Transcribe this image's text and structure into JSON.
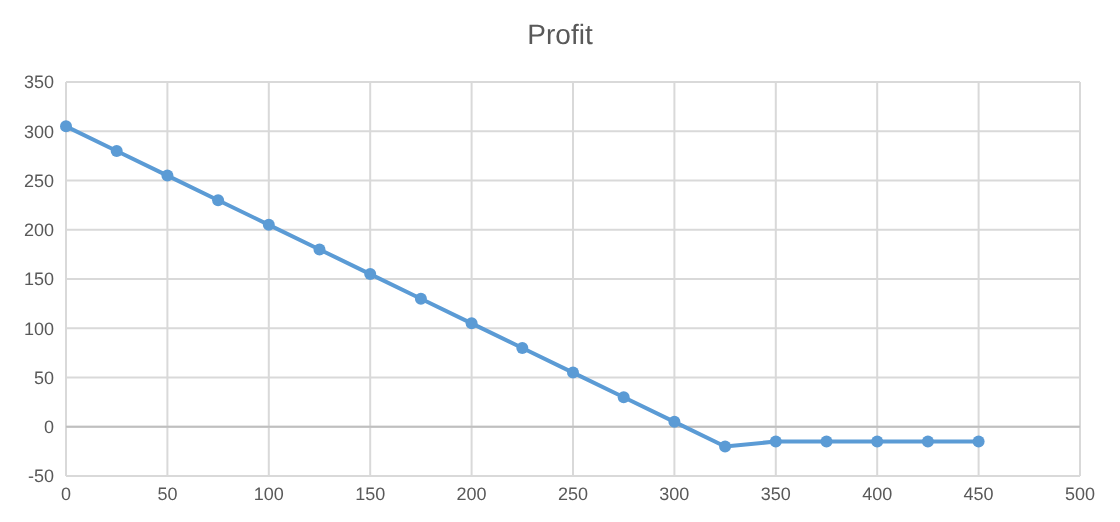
{
  "chart_data": {
    "type": "line",
    "title": "Profit",
    "x": [
      0,
      25,
      50,
      75,
      100,
      125,
      150,
      175,
      200,
      225,
      250,
      275,
      300,
      325,
      350,
      375,
      400,
      425,
      450
    ],
    "series": [
      {
        "color": "#5b9bd5",
        "values": [
          305,
          280,
          255,
          230,
          205,
          180,
          155,
          130,
          105,
          80,
          55,
          30,
          5,
          -20,
          -15,
          -15,
          -15,
          -15,
          -15
        ]
      }
    ],
    "xlim": [
      0,
      500
    ],
    "xticks": [
      0,
      50,
      100,
      150,
      200,
      250,
      300,
      350,
      400,
      450,
      500
    ],
    "ylim": [
      -50,
      350
    ],
    "yticks": [
      -50,
      0,
      50,
      100,
      150,
      200,
      250,
      300,
      350
    ],
    "grid": true,
    "marker": "circle",
    "line_style": "solid"
  }
}
